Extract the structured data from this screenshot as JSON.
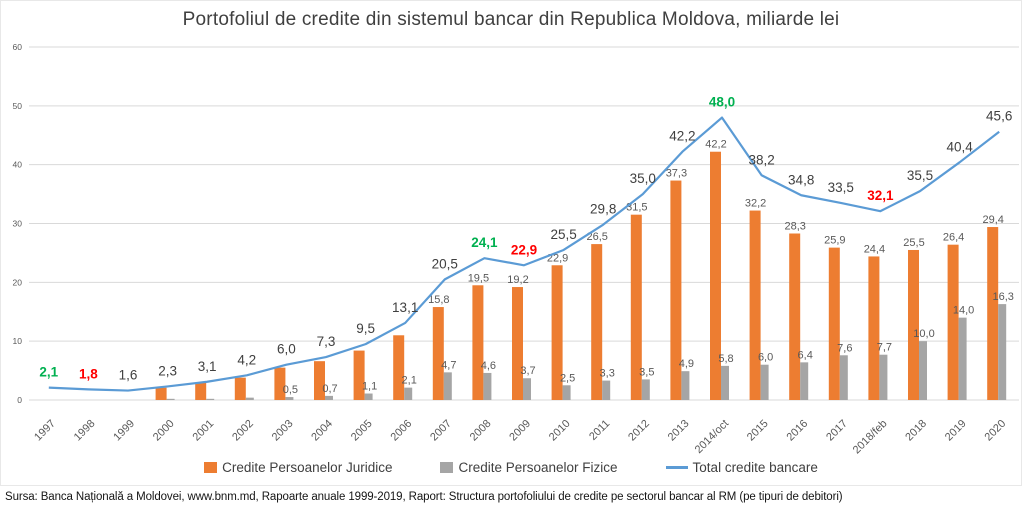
{
  "chart_data": {
    "type": "combo-bar-line",
    "title": "Portofoliul de credite din sistemul bancar din Republica Moldova, miliarde lei",
    "categories": [
      "1997",
      "1998",
      "1999",
      "2000",
      "2001",
      "2002",
      "2003",
      "2004",
      "2005",
      "2006",
      "2007",
      "2008",
      "2009",
      "2010",
      "2011",
      "2012",
      "2013",
      "2014/oct",
      "2015",
      "2016",
      "2017",
      "2018/feb",
      "2018",
      "2019",
      "2020"
    ],
    "ylim": [
      0,
      60
    ],
    "yticks": [
      0,
      10,
      20,
      30,
      40,
      50,
      60
    ],
    "grid": true,
    "legend_position": "bottom",
    "series": [
      {
        "name": "Credite Persoanelor Juridice",
        "type": "bar",
        "color": "#ED7D31",
        "values": [
          null,
          null,
          null,
          2.1,
          2.9,
          3.8,
          5.5,
          6.6,
          8.4,
          11.0,
          15.8,
          19.5,
          19.2,
          22.9,
          26.5,
          31.5,
          37.3,
          42.2,
          32.2,
          28.3,
          25.9,
          24.4,
          25.5,
          26.4,
          29.4
        ],
        "labels": [
          "",
          "",
          "",
          "",
          "",
          "",
          "",
          "",
          "",
          "",
          "15,8",
          "19,5",
          "19,2",
          "22,9",
          "26,5",
          "31,5",
          "37,3",
          "42,2",
          "32,2",
          "28,3",
          "25,9",
          "24,4",
          "25,5",
          "26,4",
          "29,4"
        ]
      },
      {
        "name": "Credite Persoanelor Fizice",
        "type": "bar",
        "color": "#A5A5A5",
        "values": [
          null,
          null,
          null,
          0.2,
          0.2,
          0.4,
          0.5,
          0.7,
          1.1,
          2.1,
          4.7,
          4.6,
          3.7,
          2.5,
          3.3,
          3.5,
          4.9,
          5.8,
          6.0,
          6.4,
          7.6,
          7.7,
          10.0,
          14.0,
          16.3
        ],
        "labels": [
          "",
          "",
          "",
          "",
          "",
          "",
          "0,5",
          "0,7",
          "1,1",
          "2,1",
          "4,7",
          "4,6",
          "3,7",
          "2,5",
          "3,3",
          "3,5",
          "4,9",
          "5,8",
          "6,0",
          "6,4",
          "7,6",
          "7,7",
          "10,0",
          "14,0",
          "16,3"
        ]
      },
      {
        "name": "Total credite bancare",
        "type": "line",
        "color": "#5B9BD5",
        "values": [
          2.1,
          1.8,
          1.6,
          2.3,
          3.1,
          4.2,
          6.0,
          7.3,
          9.5,
          13.1,
          20.5,
          24.1,
          22.9,
          25.5,
          29.8,
          35.0,
          42.2,
          48.0,
          38.2,
          34.8,
          33.5,
          32.1,
          35.5,
          40.4,
          45.6
        ],
        "labels": [
          "2,1",
          "1,8",
          "1,6",
          "2,3",
          "3,1",
          "4,2",
          "6,0",
          "7,3",
          "9,5",
          "13,1",
          "20,5",
          "24,1",
          "22,9",
          "25,5",
          "29,8",
          "35,0",
          "42,2",
          "48,0",
          "38,2",
          "34,8",
          "33,5",
          "32,1",
          "35,5",
          "40,4",
          "45,6"
        ],
        "label_styles": [
          "green",
          "red",
          "normal",
          "normal",
          "normal",
          "normal",
          "normal",
          "normal",
          "normal",
          "normal",
          "normal",
          "green",
          "red",
          "normal",
          "normal",
          "normal",
          "normal",
          "green",
          "normal",
          "normal",
          "normal",
          "red",
          "normal",
          "normal",
          "normal"
        ]
      }
    ],
    "label_colors": {
      "normal": "#404040",
      "green": "#00B050",
      "red": "#FF0000"
    },
    "bar_label_color": "#595959",
    "axis_color": "#595959",
    "grid_color": "#D9D9D9"
  },
  "source": "Sursa: Banca Națională a Moldovei, www.bnm.md, Rapoarte anuale 1999-2019, Raport: Structura portofoliului de credite pe sectorul bancar al RM (pe tipuri de debitori)"
}
